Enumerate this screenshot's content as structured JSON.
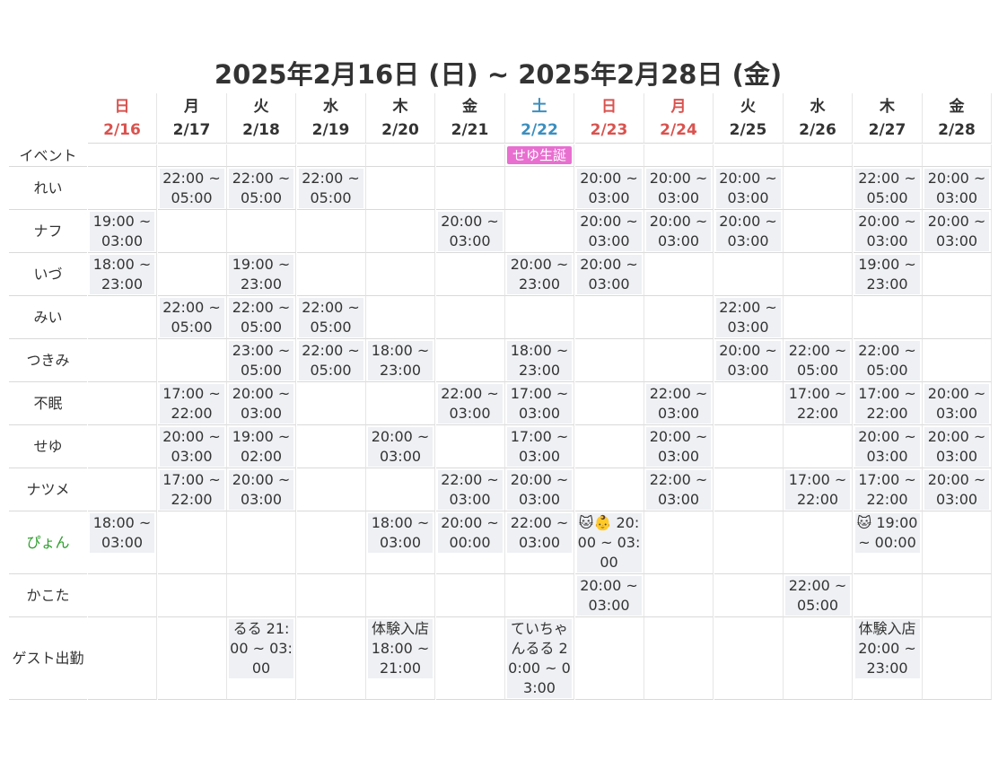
{
  "title": "2025年2月16日 (日) ~ 2025年2月28日 (金)",
  "colors": {
    "sunday": "#d9534f",
    "saturday": "#3b8fbf",
    "weekday": "#333333",
    "event_bg": "#e86fd0",
    "cell_bg": "#eef0f3",
    "highlight_name": "#2e9e2e"
  },
  "days": [
    {
      "dow": "日",
      "date": "2/16",
      "color": "#d9534f"
    },
    {
      "dow": "月",
      "date": "2/17",
      "color": "#333333"
    },
    {
      "dow": "火",
      "date": "2/18",
      "color": "#333333"
    },
    {
      "dow": "水",
      "date": "2/19",
      "color": "#333333"
    },
    {
      "dow": "木",
      "date": "2/20",
      "color": "#333333"
    },
    {
      "dow": "金",
      "date": "2/21",
      "color": "#333333"
    },
    {
      "dow": "土",
      "date": "2/22",
      "color": "#3b8fbf"
    },
    {
      "dow": "日",
      "date": "2/23",
      "color": "#d9534f"
    },
    {
      "dow": "月",
      "date": "2/24",
      "color": "#d9534f"
    },
    {
      "dow": "火",
      "date": "2/25",
      "color": "#333333"
    },
    {
      "dow": "水",
      "date": "2/26",
      "color": "#333333"
    },
    {
      "dow": "木",
      "date": "2/27",
      "color": "#333333"
    },
    {
      "dow": "金",
      "date": "2/28",
      "color": "#333333"
    }
  ],
  "event_row": {
    "label": "イベント",
    "events": [
      "",
      "",
      "",
      "",
      "",
      "",
      "せゆ生誕",
      "",
      "",
      "",
      "",
      "",
      ""
    ]
  },
  "rows": [
    {
      "name": "れい",
      "cells": [
        "",
        "22:00 ~ 05:00",
        "22:00 ~ 05:00",
        "22:00 ~ 05:00",
        "",
        "",
        "",
        "20:00 ~ 03:00",
        "20:00 ~ 03:00",
        "20:00 ~ 03:00",
        "",
        "22:00 ~ 05:00",
        "20:00 ~ 03:00"
      ]
    },
    {
      "name": "ナフ",
      "cells": [
        "19:00 ~ 03:00",
        "",
        "",
        "",
        "",
        "20:00 ~ 03:00",
        "",
        "20:00 ~ 03:00",
        "20:00 ~ 03:00",
        "20:00 ~ 03:00",
        "",
        "20:00 ~ 03:00",
        "20:00 ~ 03:00"
      ]
    },
    {
      "name": "いづ",
      "cells": [
        "18:00 ~ 23:00",
        "",
        "19:00 ~ 23:00",
        "",
        "",
        "",
        "20:00 ~ 23:00",
        "20:00 ~ 03:00",
        "",
        "",
        "",
        "19:00 ~ 23:00",
        ""
      ]
    },
    {
      "name": "みい",
      "cells": [
        "",
        "22:00 ~ 05:00",
        "22:00 ~ 05:00",
        "22:00 ~ 05:00",
        "",
        "",
        "",
        "",
        "",
        "22:00 ~ 03:00",
        "",
        "",
        ""
      ]
    },
    {
      "name": "つきみ",
      "cells": [
        "",
        "",
        "23:00 ~ 05:00",
        "22:00 ~ 05:00",
        "18:00 ~ 23:00",
        "",
        "18:00 ~ 23:00",
        "",
        "",
        "20:00 ~ 03:00",
        "22:00 ~ 05:00",
        "22:00 ~ 05:00",
        ""
      ]
    },
    {
      "name": "不眠",
      "cells": [
        "",
        "17:00 ~ 22:00",
        "20:00 ~ 03:00",
        "",
        "",
        "22:00 ~ 03:00",
        "17:00 ~ 03:00",
        "",
        "22:00 ~ 03:00",
        "",
        "17:00 ~ 22:00",
        "17:00 ~ 22:00",
        "20:00 ~ 03:00"
      ]
    },
    {
      "name": "せゆ",
      "cells": [
        "",
        "20:00 ~ 03:00",
        "19:00 ~ 02:00",
        "",
        "20:00 ~ 03:00",
        "",
        "17:00 ~ 03:00",
        "",
        "20:00 ~ 03:00",
        "",
        "",
        "20:00 ~ 03:00",
        "20:00 ~ 03:00"
      ]
    },
    {
      "name": "ナツメ",
      "cells": [
        "",
        "17:00 ~ 22:00",
        "20:00 ~ 03:00",
        "",
        "",
        "22:00 ~ 03:00",
        "20:00 ~ 03:00",
        "",
        "22:00 ~ 03:00",
        "",
        "17:00 ~ 22:00",
        "17:00 ~ 22:00",
        "20:00 ~ 03:00"
      ]
    },
    {
      "name": "ぴょん",
      "name_color": "#2e9e2e",
      "cells": [
        "18:00 ~ 03:00",
        "",
        "",
        "",
        "18:00 ~ 03:00",
        "20:00 ~ 00:00",
        "22:00 ~ 03:00",
        "🐱👶 20:00 ~ 03:00",
        "",
        "",
        "",
        "🐱 19:00 ~ 00:00",
        ""
      ]
    },
    {
      "name": "かこた",
      "cells": [
        "",
        "",
        "",
        "",
        "",
        "",
        "",
        "20:00 ~ 03:00",
        "",
        "",
        "22:00 ~ 05:00",
        "",
        ""
      ]
    },
    {
      "name": "ゲスト出勤",
      "cells": [
        "",
        "",
        "るる 21:00 ~ 03:00",
        "",
        "体験入店 18:00 ~ 21:00",
        "",
        "ていちゃんるる 20:00 ~ 03:00",
        "",
        "",
        "",
        "",
        "体験入店 20:00 ~ 23:00",
        ""
      ]
    }
  ]
}
